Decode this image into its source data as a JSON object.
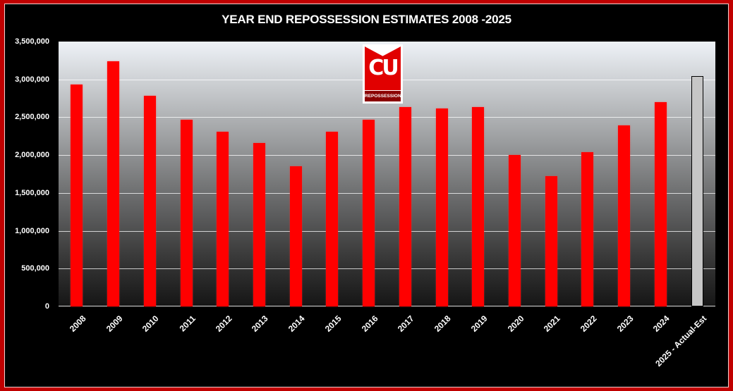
{
  "chart_data": {
    "type": "bar",
    "title": "YEAR END REPOSSESSION ESTIMATES 2008 -2025",
    "xlabel": "",
    "ylabel": "",
    "ylim": [
      0,
      3500000
    ],
    "yticks": [
      0,
      500000,
      1000000,
      1500000,
      2000000,
      2500000,
      3000000,
      3500000
    ],
    "ytick_labels": [
      "0",
      "500,000",
      "1,000,000",
      "1,500,000",
      "2,000,000",
      "2,500,000",
      "3,000,000",
      "3,500,000"
    ],
    "grid": true,
    "legend": null,
    "categories": [
      "2008",
      "2009",
      "2010",
      "2011",
      "2012",
      "2013",
      "2014",
      "2015",
      "2016",
      "2017",
      "2018",
      "2019",
      "2020",
      "2021",
      "2022",
      "2023",
      "2024",
      "2025 - Actual-Est"
    ],
    "values": [
      2930000,
      3240000,
      2780000,
      2470000,
      2310000,
      2160000,
      1850000,
      2310000,
      2470000,
      2630000,
      2620000,
      2630000,
      2000000,
      1720000,
      2040000,
      2390000,
      2700000,
      3030000
    ],
    "bar_colors": [
      "#ff0000",
      "#ff0000",
      "#ff0000",
      "#ff0000",
      "#ff0000",
      "#ff0000",
      "#ff0000",
      "#ff0000",
      "#ff0000",
      "#ff0000",
      "#ff0000",
      "#ff0000",
      "#ff0000",
      "#ff0000",
      "#ff0000",
      "#ff0000",
      "#ff0000",
      "#c6c6c6"
    ],
    "annotations": [
      "CU REPOSSESSION logo"
    ]
  },
  "logo": {
    "letters": "CU",
    "band_text": "REPOSSESSION"
  },
  "colors": {
    "frame": "#c00000",
    "bar": "#ff0000",
    "estimate_bar": "#c6c6c6",
    "background": "#000000"
  }
}
